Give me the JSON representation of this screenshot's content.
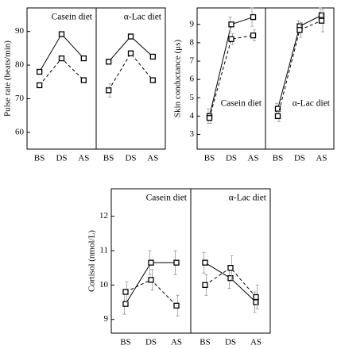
{
  "chart_data": [
    {
      "type": "line",
      "ylabel": "Pulse rate (beats/min)",
      "ylim": [
        55,
        97
      ],
      "yticks": [
        60,
        70,
        80,
        90
      ],
      "categories": [
        "BS",
        "DS",
        "AS"
      ],
      "title_position": "top",
      "panels": [
        {
          "title": "Casein diet",
          "series": [
            {
              "style": "solid",
              "color": "#000000",
              "values": [
                78,
                89.2,
                82
              ],
              "errors": [
                0.7,
                0.7,
                0.7
              ]
            },
            {
              "style": "dashed",
              "color": "#000000",
              "values": [
                74,
                82,
                75.5
              ],
              "errors": [
                0.7,
                0.7,
                0.8
              ]
            }
          ]
        },
        {
          "title": "α-Lac diet",
          "series": [
            {
              "style": "solid",
              "color": "#000000",
              "values": [
                81,
                88.5,
                82.5
              ],
              "errors": [
                0.7,
                0.8,
                0.7
              ]
            },
            {
              "style": "dashed",
              "color": "#000000",
              "values": [
                72.5,
                83.5,
                75.5
              ],
              "errors": [
                2,
                0.8,
                0.8
              ]
            }
          ]
        }
      ]
    },
    {
      "type": "line",
      "ylabel": "Skin conductance (μs)",
      "ylim": [
        2.2,
        9.9
      ],
      "yticks": [
        3,
        4,
        5,
        6,
        7,
        8,
        9
      ],
      "categories": [
        "BS",
        "DS",
        "AS"
      ],
      "title_position": "bottom",
      "panels": [
        {
          "title": "Casein diet",
          "series": [
            {
              "style": "solid",
              "color": "#000000",
              "values": [
                4.0,
                9.0,
                9.4
              ],
              "errors": [
                0.4,
                0.4,
                0.5
              ]
            },
            {
              "style": "dashed",
              "color": "#000000",
              "values": [
                3.9,
                8.2,
                8.4
              ],
              "errors": [
                0.3,
                0.3,
                0.3
              ]
            }
          ]
        },
        {
          "title": "α-Lac diet",
          "series": [
            {
              "style": "solid",
              "color": "#000000",
              "values": [
                4.4,
                8.9,
                9.5
              ],
              "errors": [
                0.3,
                0.3,
                0.4
              ]
            },
            {
              "style": "dashed",
              "color": "#000000",
              "values": [
                4.0,
                8.7,
                9.2
              ],
              "errors": [
                0.3,
                0.4,
                0.6
              ]
            }
          ]
        }
      ]
    },
    {
      "type": "line",
      "ylabel": "Cortisol (nmol/L)",
      "ylim": [
        8.6,
        12.8
      ],
      "yticks": [
        9,
        10,
        11,
        12
      ],
      "categories": [
        "BS",
        "DS",
        "AS"
      ],
      "title_position": "top",
      "panels": [
        {
          "title": "Casein diet",
          "series": [
            {
              "style": "solid",
              "color": "#000000",
              "values": [
                9.45,
                10.65,
                10.65
              ],
              "errors": [
                0.3,
                0.35,
                0.35
              ]
            },
            {
              "style": "dashed",
              "color": "#000000",
              "values": [
                9.8,
                10.15,
                9.4
              ],
              "errors": [
                0.3,
                0.3,
                0.3
              ]
            }
          ]
        },
        {
          "title": "α-Lac diet",
          "series": [
            {
              "style": "solid",
              "color": "#000000",
              "values": [
                10.65,
                10.2,
                9.5
              ],
              "errors": [
                0.3,
                0.3,
                0.3
              ]
            },
            {
              "style": "dashed",
              "color": "#000000",
              "values": [
                10.0,
                10.5,
                9.65
              ],
              "errors": [
                0.3,
                0.35,
                0.35
              ]
            }
          ]
        }
      ]
    }
  ]
}
